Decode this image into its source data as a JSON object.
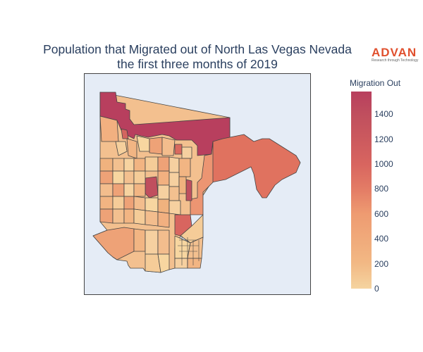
{
  "title": {
    "line1": "Population that Migrated out of North Las Vegas Nevada",
    "line2": "the first three months of 2019"
  },
  "logo": {
    "name": "ADVAN",
    "tagline": "Research through Technology"
  },
  "colorbar": {
    "title": "Migration Out",
    "ticks": [
      "0",
      "200",
      "400",
      "600",
      "800",
      "1000",
      "1200",
      "1400"
    ],
    "range": [
      0,
      1600
    ],
    "colors": [
      "#f5d4a0",
      "#f2b884",
      "#ee9b71",
      "#e47d66",
      "#d8655f",
      "#c04f5e",
      "#b83f5e"
    ]
  },
  "map": {
    "background": "#e5ecf6",
    "region": "North Las Vegas, Nevada",
    "period": "first three months of 2019",
    "dominant_value": 1500,
    "eastern_tract_value": 850,
    "central_tract_value": 1200
  }
}
